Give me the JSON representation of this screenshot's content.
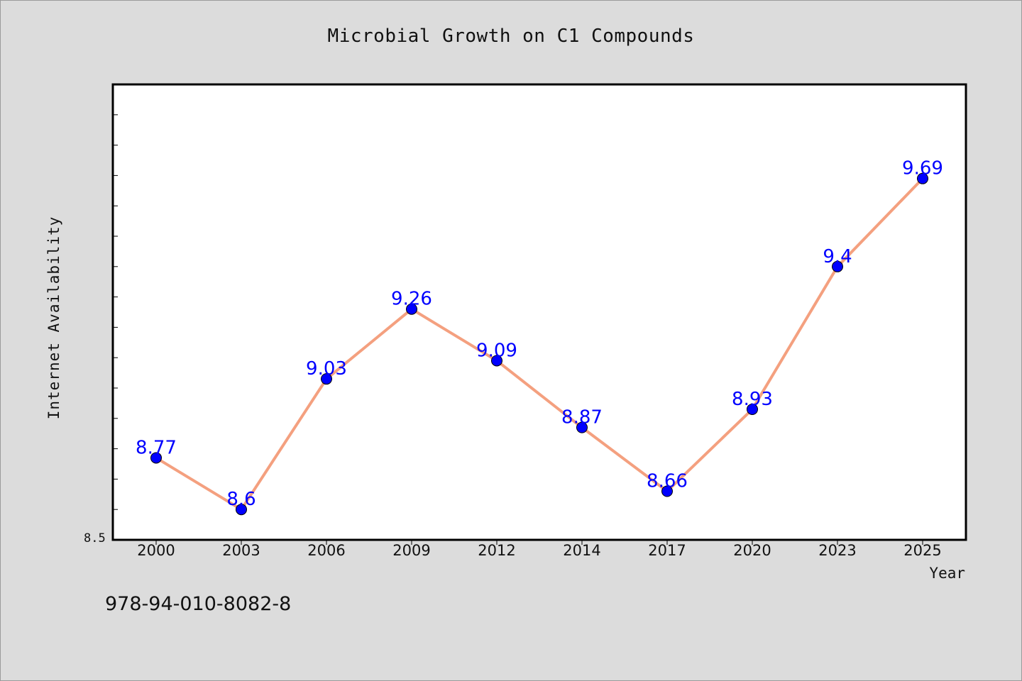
{
  "chart_data": {
    "type": "line",
    "title": "Microbial Growth on C1 Compounds",
    "xlabel": "Year",
    "ylabel": "Internet Availability",
    "y_tick_label": "8.5",
    "categories": [
      "2000",
      "2003",
      "2006",
      "2009",
      "2012",
      "2014",
      "2017",
      "2020",
      "2023",
      "2025"
    ],
    "series": [
      {
        "values": [
          8.77,
          8.6,
          9.03,
          9.26,
          9.09,
          8.87,
          8.66,
          8.93,
          9.4,
          9.69
        ],
        "data_labels": [
          "8.77",
          "8.6",
          "9.03",
          "9.26",
          "9.09",
          "8.87",
          "8.66",
          "8.93",
          "9.4",
          "9.69"
        ]
      }
    ],
    "ylim": [
      8.5,
      10.0
    ],
    "grid": false,
    "line_color": "#f4a07f",
    "marker_color": "#0000ff",
    "label_color": "#0000ff"
  },
  "footer_text": "978-94-010-8082-8"
}
